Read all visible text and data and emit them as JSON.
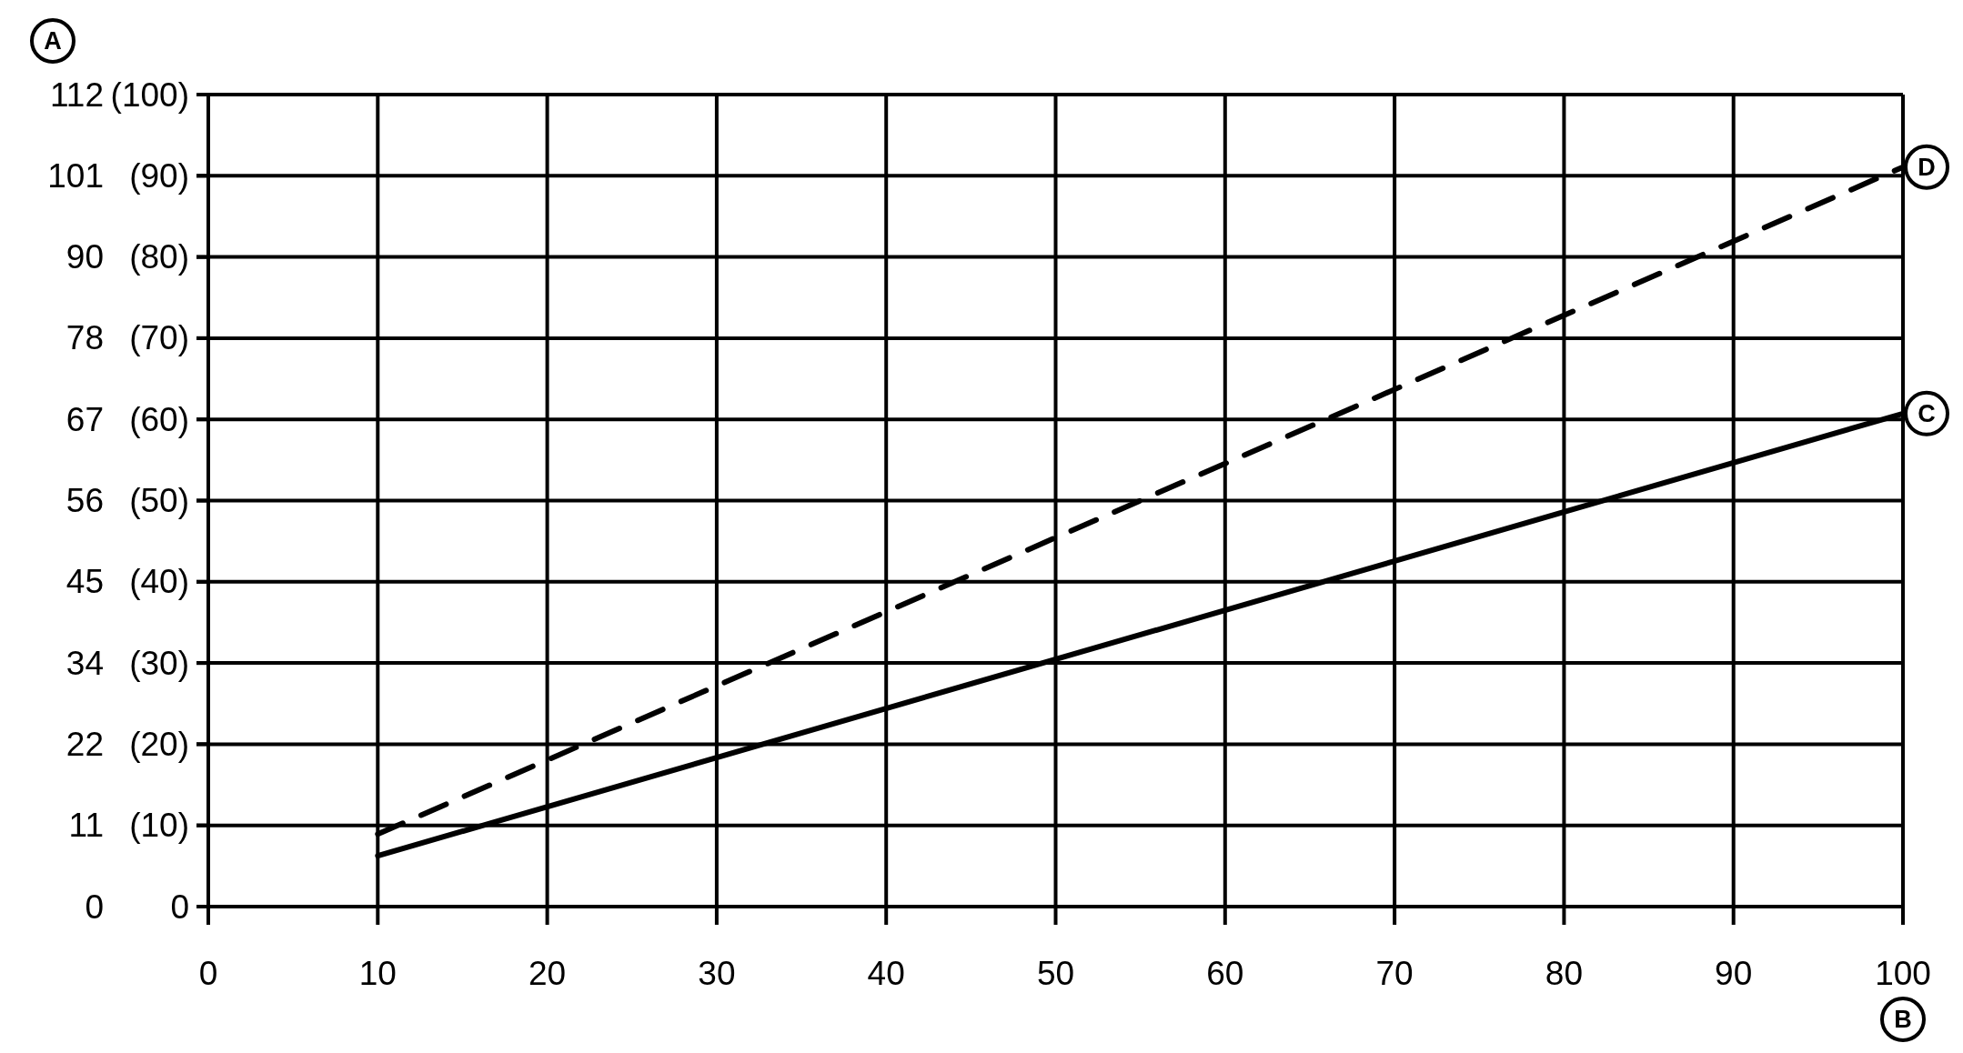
{
  "chart_data": {
    "type": "line",
    "xlabel": "B",
    "ylabel": "A",
    "x": [
      10,
      100
    ],
    "series": [
      {
        "name": "C",
        "color": "#000000",
        "values": [
          7,
          68
        ],
        "line_style": "solid"
      },
      {
        "name": "D",
        "color": "#000000",
        "values": [
          10,
          102
        ],
        "line_style": "dashed"
      }
    ],
    "xlim": [
      0,
      100
    ],
    "xticks": [
      0,
      10,
      20,
      30,
      40,
      50,
      60,
      70,
      80,
      90,
      100
    ],
    "ylim": [
      0,
      112
    ],
    "yticks": [
      0,
      {
        "value": 11.2,
        "label": "11"
      },
      {
        "value": 22.4,
        "label": "22"
      },
      {
        "value": 33.6,
        "label": "34"
      },
      {
        "value": 44.8,
        "label": "45"
      },
      56,
      {
        "value": 67.2,
        "label": "67"
      },
      {
        "value": 78.4,
        "label": "78"
      },
      {
        "value": 89.6,
        "label": "90"
      },
      {
        "value": 100.8,
        "label": "101"
      },
      112
    ],
    "y2lim": [
      0,
      100
    ],
    "y2ticks": [
      0,
      {
        "value": 10,
        "label": "(10)"
      },
      {
        "value": 20,
        "label": "(20)"
      },
      {
        "value": 30,
        "label": "(30)"
      },
      {
        "value": 40,
        "label": "(40)"
      },
      {
        "value": 50,
        "label": "(50)"
      },
      {
        "value": 60,
        "label": "(60)"
      },
      {
        "value": 70,
        "label": "(70)"
      },
      {
        "value": 80,
        "label": "(80)"
      },
      {
        "value": 90,
        "label": "(90)"
      },
      {
        "value": 100,
        "label": "(100)"
      }
    ],
    "grid": true
  }
}
